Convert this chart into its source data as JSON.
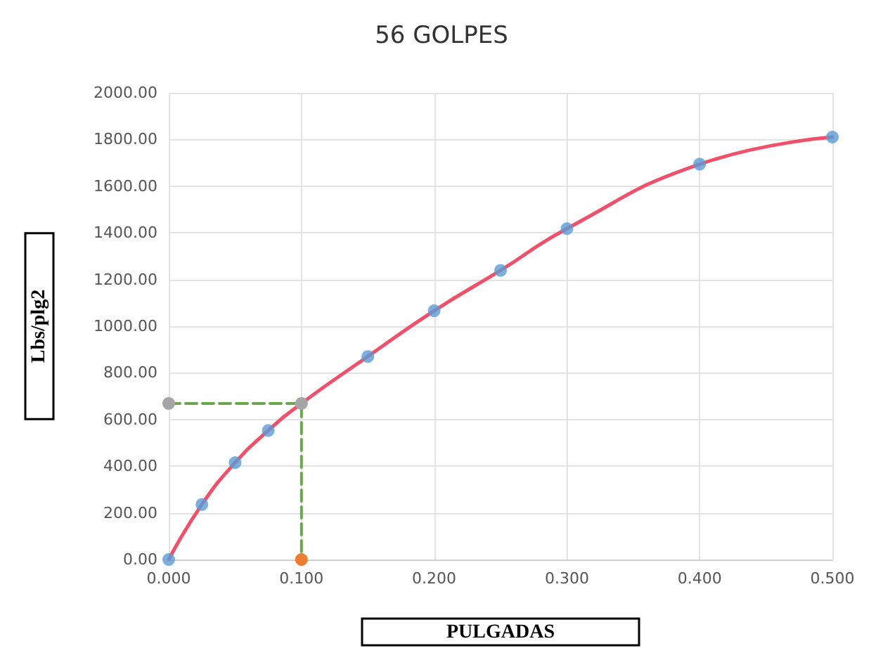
{
  "chart_data": {
    "type": "line",
    "title": "56 GOLPES",
    "xlabel": "PULGADAS",
    "ylabel": "Lbs/plg2",
    "xlim": [
      0,
      0.5
    ],
    "xticks": [
      {
        "value": 0,
        "label": "0.000"
      },
      {
        "value": 0.1,
        "label": "0.100"
      },
      {
        "value": 0.2,
        "label": "0.200"
      },
      {
        "value": 0.3,
        "label": "0.300"
      },
      {
        "value": 0.4,
        "label": "0.400"
      },
      {
        "value": 0.5,
        "label": "0.500"
      }
    ],
    "ylim": [
      0,
      2000
    ],
    "yticks": [
      {
        "value": 0,
        "label": "0.00"
      },
      {
        "value": 200,
        "label": "200.00"
      },
      {
        "value": 400,
        "label": "400.00"
      },
      {
        "value": 600,
        "label": "600.00"
      },
      {
        "value": 800,
        "label": "800.00"
      },
      {
        "value": 1000,
        "label": "1000.00"
      },
      {
        "value": 1200,
        "label": "1200.00"
      },
      {
        "value": 1400,
        "label": "1400.00"
      },
      {
        "value": 1600,
        "label": "1600.00"
      },
      {
        "value": 1800,
        "label": "1800.00"
      },
      {
        "value": 2000,
        "label": "2000.00"
      }
    ],
    "grid": true,
    "series": [
      {
        "marker": "none",
        "color": "#f0506a",
        "x": [
          0,
          0.025,
          0.05,
          0.075,
          0.1,
          0.15,
          0.2,
          0.25,
          0.3,
          0.4,
          0.5
        ],
        "values": [
          0,
          236,
          415,
          553,
          669,
          870,
          1066,
          1239,
          1418,
          1694,
          1810
        ]
      },
      {
        "type": "scatter",
        "marker": "circle",
        "color": "#5b9bd5",
        "x": [
          0,
          0.025,
          0.05,
          0.075,
          0.15,
          0.2,
          0.25,
          0.3,
          0.4,
          0.5
        ],
        "values": [
          0,
          236,
          415,
          553,
          870,
          1066,
          1239,
          1418,
          1694,
          1810
        ]
      },
      {
        "type": "line",
        "marker": "circle",
        "line_style": "dashed",
        "color": "#6aa84f",
        "colors": [
          "#a5a5a5",
          "#a5a5a5",
          "#ed7d31"
        ],
        "x": [
          0,
          0.1,
          0.1
        ],
        "values": [
          669,
          669,
          0
        ]
      }
    ]
  }
}
